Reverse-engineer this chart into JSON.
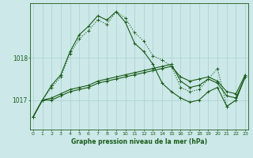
{
  "xlabel": "Graphe pression niveau de la mer (hPa)",
  "bg_color": "#cce8e8",
  "grid_color": "#aad0d0",
  "line_color": "#1a5c1a",
  "ylim": [
    1016.3,
    1019.3
  ],
  "yticks": [
    1017,
    1018
  ],
  "series": [
    [
      1016.6,
      1017.0,
      1017.0,
      1017.1,
      1017.2,
      1017.25,
      1017.3,
      1017.4,
      1017.45,
      1017.5,
      1017.55,
      1017.6,
      1017.65,
      1017.7,
      1017.75,
      1017.8,
      1017.55,
      1017.45,
      1017.5,
      1017.55,
      1017.45,
      1017.2,
      1017.15,
      1017.6
    ],
    [
      1016.6,
      1017.0,
      1017.05,
      1017.15,
      1017.25,
      1017.3,
      1017.35,
      1017.45,
      1017.5,
      1017.55,
      1017.6,
      1017.65,
      1017.7,
      1017.75,
      1017.8,
      1017.85,
      1017.45,
      1017.3,
      1017.35,
      1017.5,
      1017.4,
      1017.1,
      1017.05,
      1017.55
    ],
    [
      1016.6,
      1017.0,
      1017.3,
      1017.55,
      1018.1,
      1018.45,
      1018.65,
      1018.9,
      1018.8,
      1019.1,
      1018.95,
      1018.6,
      1018.4,
      1018.05,
      1017.95,
      1017.8,
      1017.3,
      1017.2,
      1017.25,
      1017.5,
      1017.75,
      1016.85,
      1017.0,
      1017.55
    ],
    [
      1016.6,
      1017.0,
      1017.35,
      1017.6,
      1018.15,
      1018.55,
      1018.75,
      1019.0,
      1018.9,
      1019.1,
      1018.85,
      1018.35,
      1018.15,
      1017.85,
      1017.4,
      1017.2,
      1017.05,
      1016.95,
      1017.0,
      1017.2,
      1017.3,
      1016.85,
      1017.0,
      1017.55
    ]
  ],
  "line_styles": [
    "solid",
    "solid",
    "dotted",
    "solid"
  ],
  "x_ticks": [
    0,
    1,
    2,
    3,
    4,
    5,
    6,
    7,
    8,
    9,
    10,
    11,
    12,
    13,
    14,
    15,
    16,
    17,
    18,
    19,
    20,
    21,
    22,
    23
  ]
}
